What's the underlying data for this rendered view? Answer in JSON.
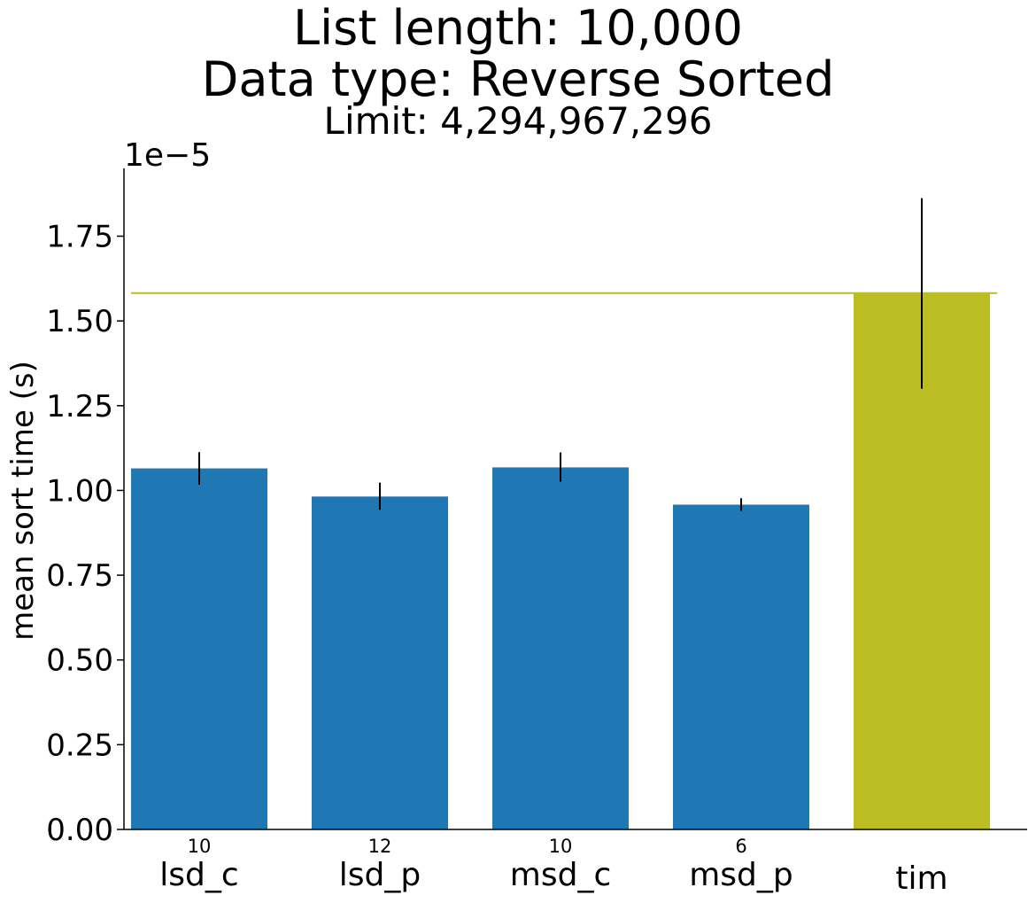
{
  "chart_data": {
    "type": "bar",
    "title": "List length: 10,000",
    "title_line2": "Data type: Reverse Sorted",
    "subtitle": "Limit: 4,294,967,296",
    "ylabel": "mean sort time (s)",
    "xlabel": "",
    "y_offset_label": "1e−5",
    "ylim": [
      0,
      1.95
    ],
    "yticks": [
      "0.00",
      "0.25",
      "0.50",
      "0.75",
      "1.00",
      "1.25",
      "1.50",
      "1.75"
    ],
    "categories": [
      "lsd_c",
      "lsd_p",
      "msd_c",
      "msd_p",
      "tim"
    ],
    "values": [
      1.065,
      0.982,
      1.068,
      0.958,
      1.582
    ],
    "errors_low": [
      1.017,
      0.943,
      1.026,
      0.94,
      1.3
    ],
    "errors_high": [
      1.113,
      1.023,
      1.112,
      0.977,
      1.862
    ],
    "annotations": [
      "10",
      "12",
      "10",
      "6",
      ""
    ],
    "colors": [
      "#1f77b4",
      "#1f77b4",
      "#1f77b4",
      "#1f77b4",
      "#bcbd22"
    ],
    "reference_line": {
      "value": 1.582,
      "color": "#bcbd22"
    },
    "grid": false
  }
}
